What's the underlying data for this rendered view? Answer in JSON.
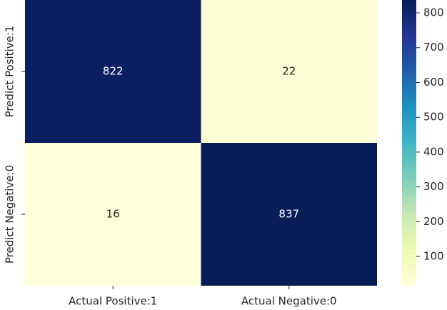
{
  "chart_data": {
    "type": "heatmap",
    "x_categories": [
      "Actual Positive:1",
      "Actual Negative:0"
    ],
    "y_categories": [
      "Predict Positive:1",
      "Predict Negative:0"
    ],
    "values": [
      [
        822,
        22
      ],
      [
        16,
        837
      ]
    ],
    "colormap": "YlGnBu",
    "zlim": [
      16,
      837
    ],
    "zticks": [
      100,
      200,
      300,
      400,
      500,
      600,
      700,
      800
    ]
  }
}
